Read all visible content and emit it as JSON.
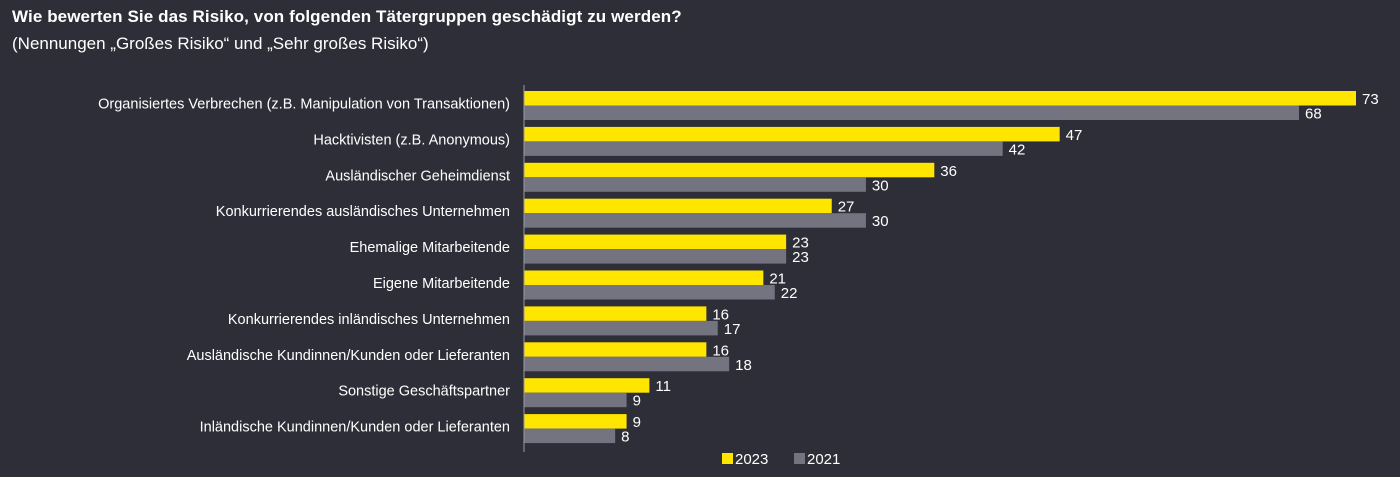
{
  "chart_data": {
    "type": "bar",
    "orientation": "horizontal",
    "title": "Wie bewerten Sie das Risiko, von folgenden Tätergruppen geschädigt zu werden?",
    "subtitle": "(Nennungen „Großes Risiko“ und „Sehr großes Risiko“)",
    "categories": [
      "Organisiertes Verbrechen (z.B. Manipulation von Transaktionen)",
      "Hacktivisten (z.B. Anonymous)",
      "Ausländischer Geheimdienst",
      "Konkurrierendes ausländisches Unternehmen",
      "Ehemalige Mitarbeitende",
      "Eigene Mitarbeitende",
      "Konkurrierendes inländisches Unternehmen",
      "Ausländische Kundinnen/Kunden oder Lieferanten",
      "Sonstige Geschäftspartner",
      "Inländische Kundinnen/Kunden oder Lieferanten"
    ],
    "series": [
      {
        "name": "2023",
        "color": "#ffe600",
        "values": [
          73,
          47,
          36,
          27,
          23,
          21,
          16,
          16,
          11,
          9
        ]
      },
      {
        "name": "2021",
        "color": "#747480",
        "values": [
          68,
          42,
          30,
          30,
          23,
          22,
          17,
          18,
          9,
          8
        ]
      }
    ],
    "xlim": [
      0,
      73
    ],
    "legend": "bottom-center",
    "grid": false
  },
  "colors": {
    "background": "#2e2e38",
    "axis": "#9a9aa2"
  }
}
